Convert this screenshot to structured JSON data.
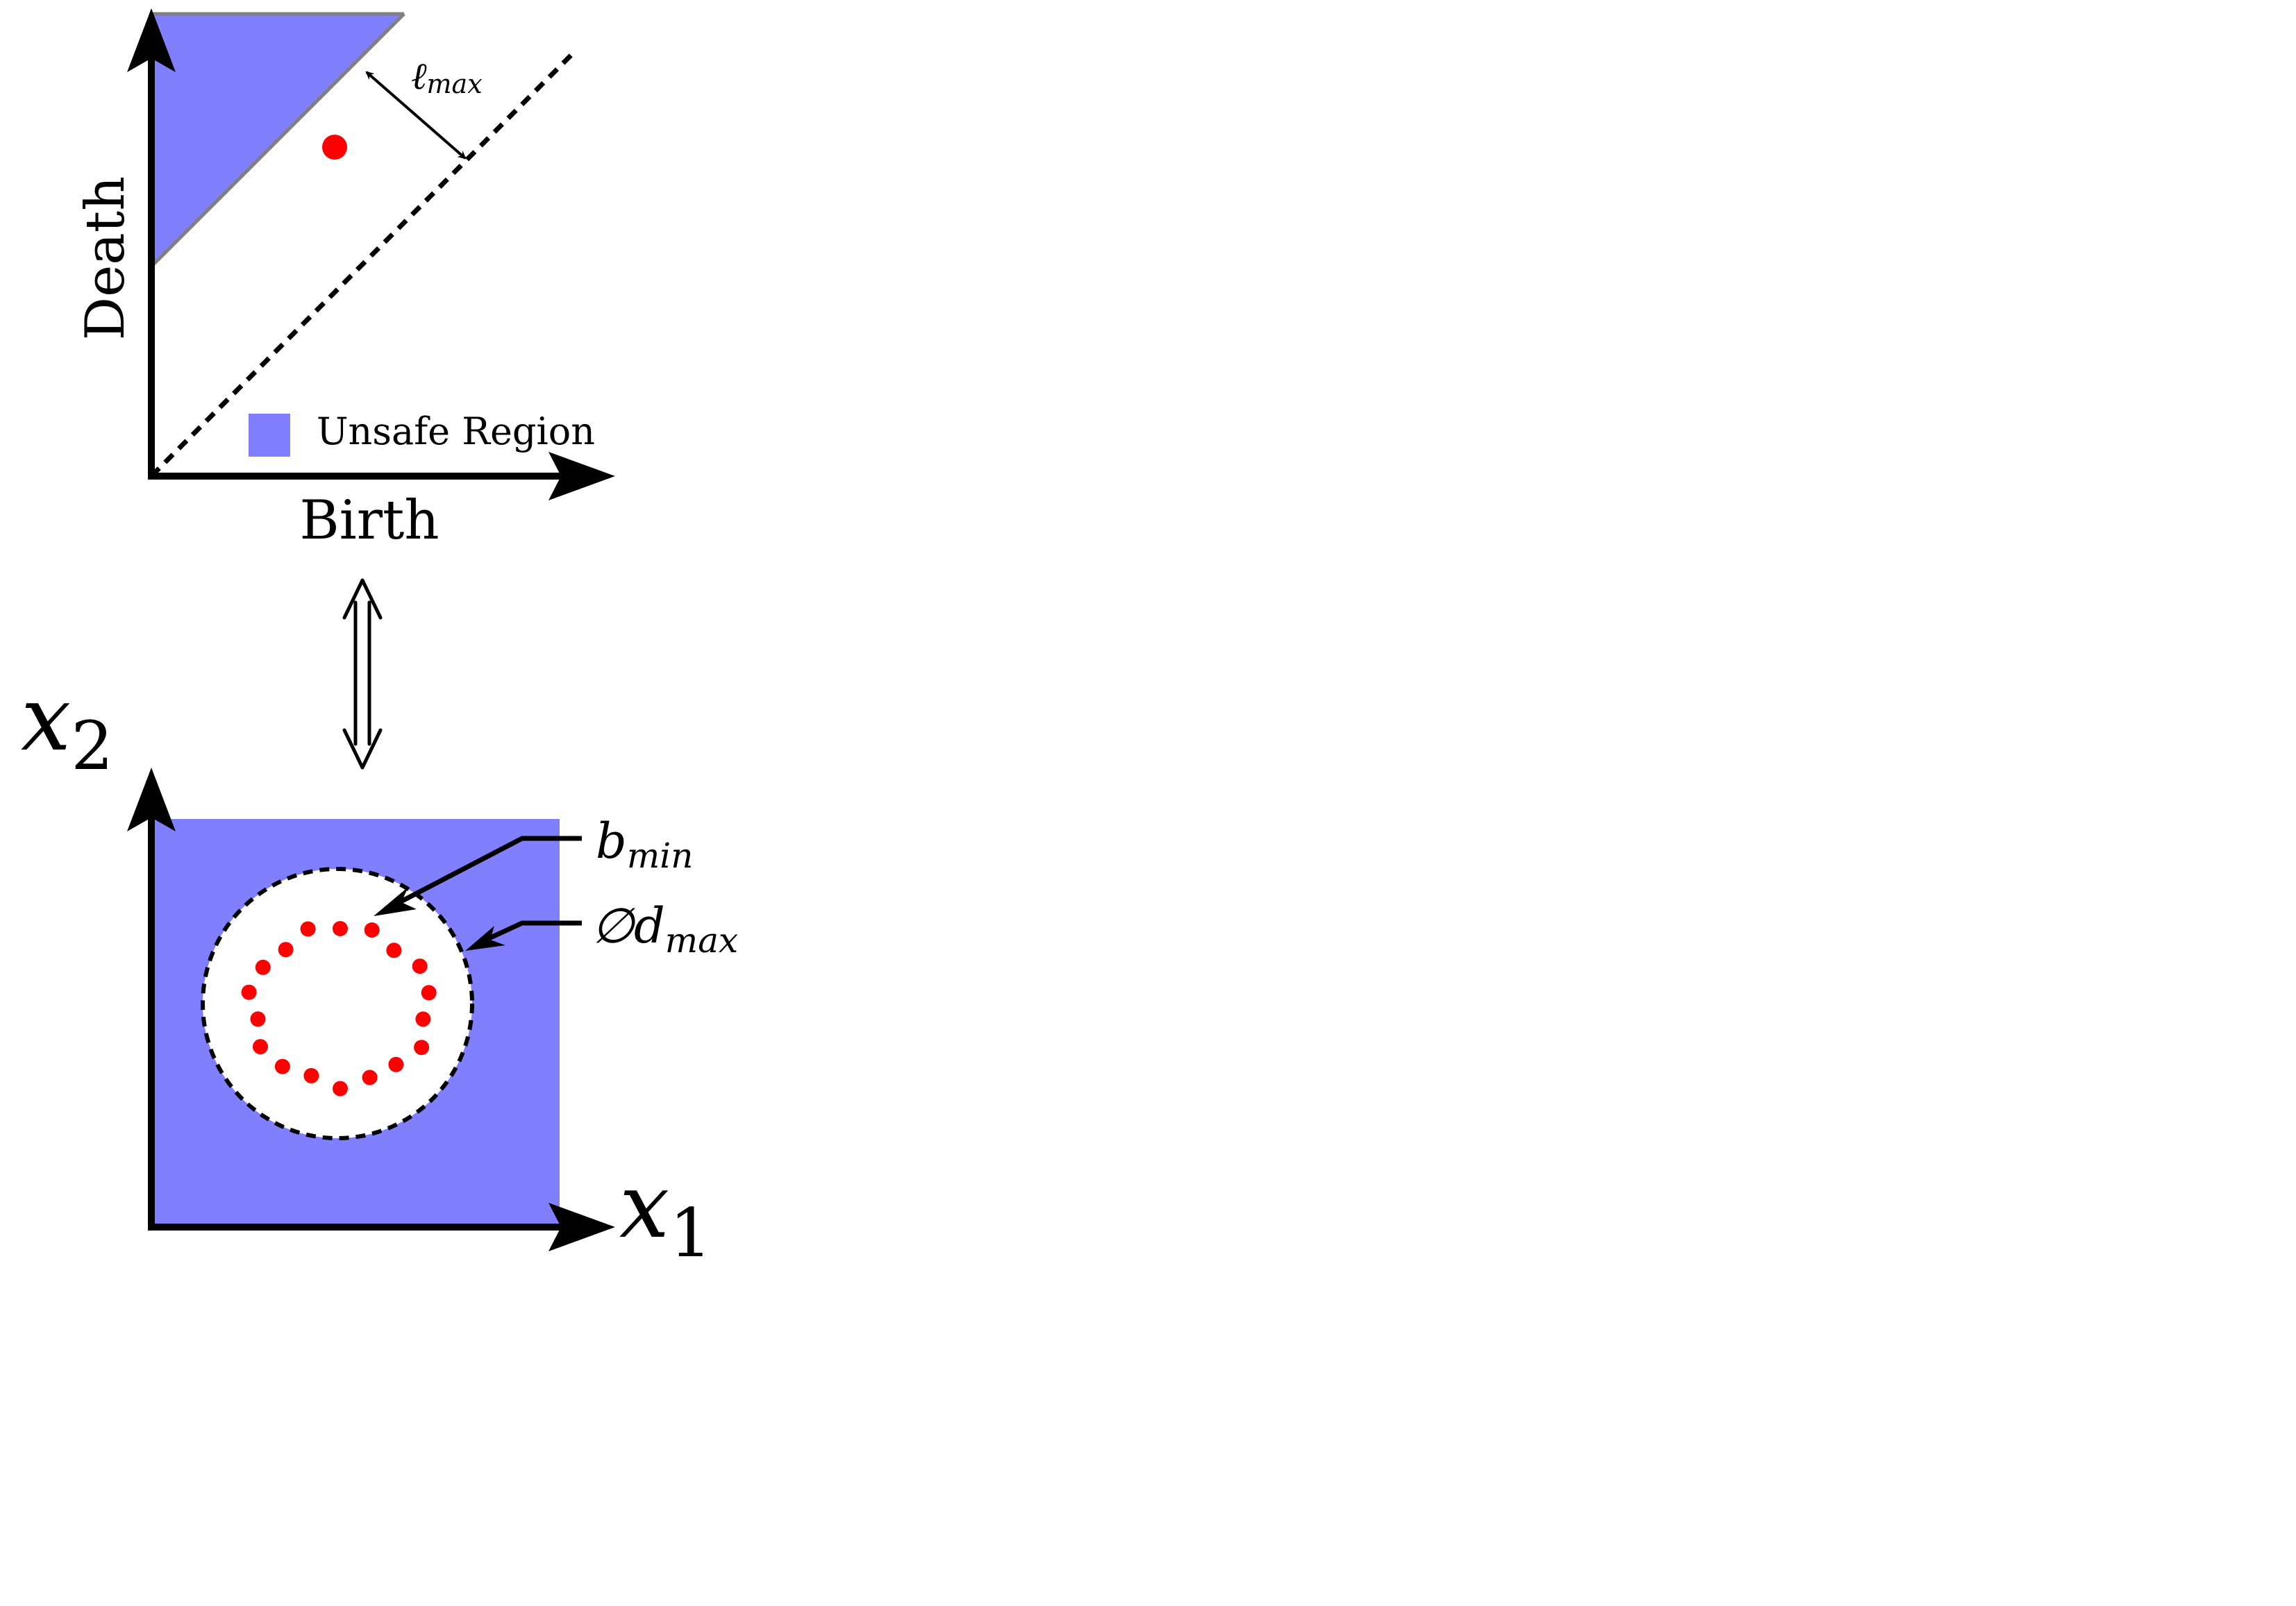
{
  "colors": {
    "unsafe_fill": "#8080ff",
    "point": "#ff0000",
    "axis": "#000000",
    "boundary": "#808080"
  },
  "persistence_diagram": {
    "x_axis_label": "Birth",
    "y_axis_label": "Death",
    "lifetime_label": {
      "main": "ℓ",
      "sub": "max"
    },
    "legend": {
      "label": "Unsafe Region"
    }
  },
  "equivalence_symbol": "⟺",
  "point_cloud": {
    "x_axis_label": {
      "main": "x",
      "sub": "1"
    },
    "y_axis_label": {
      "main": "x",
      "sub": "2"
    },
    "birth_label": {
      "main": "b",
      "sub": "min"
    },
    "diameter_label": {
      "main": "∅d",
      "sub": "max"
    },
    "sample_count": 18
  }
}
